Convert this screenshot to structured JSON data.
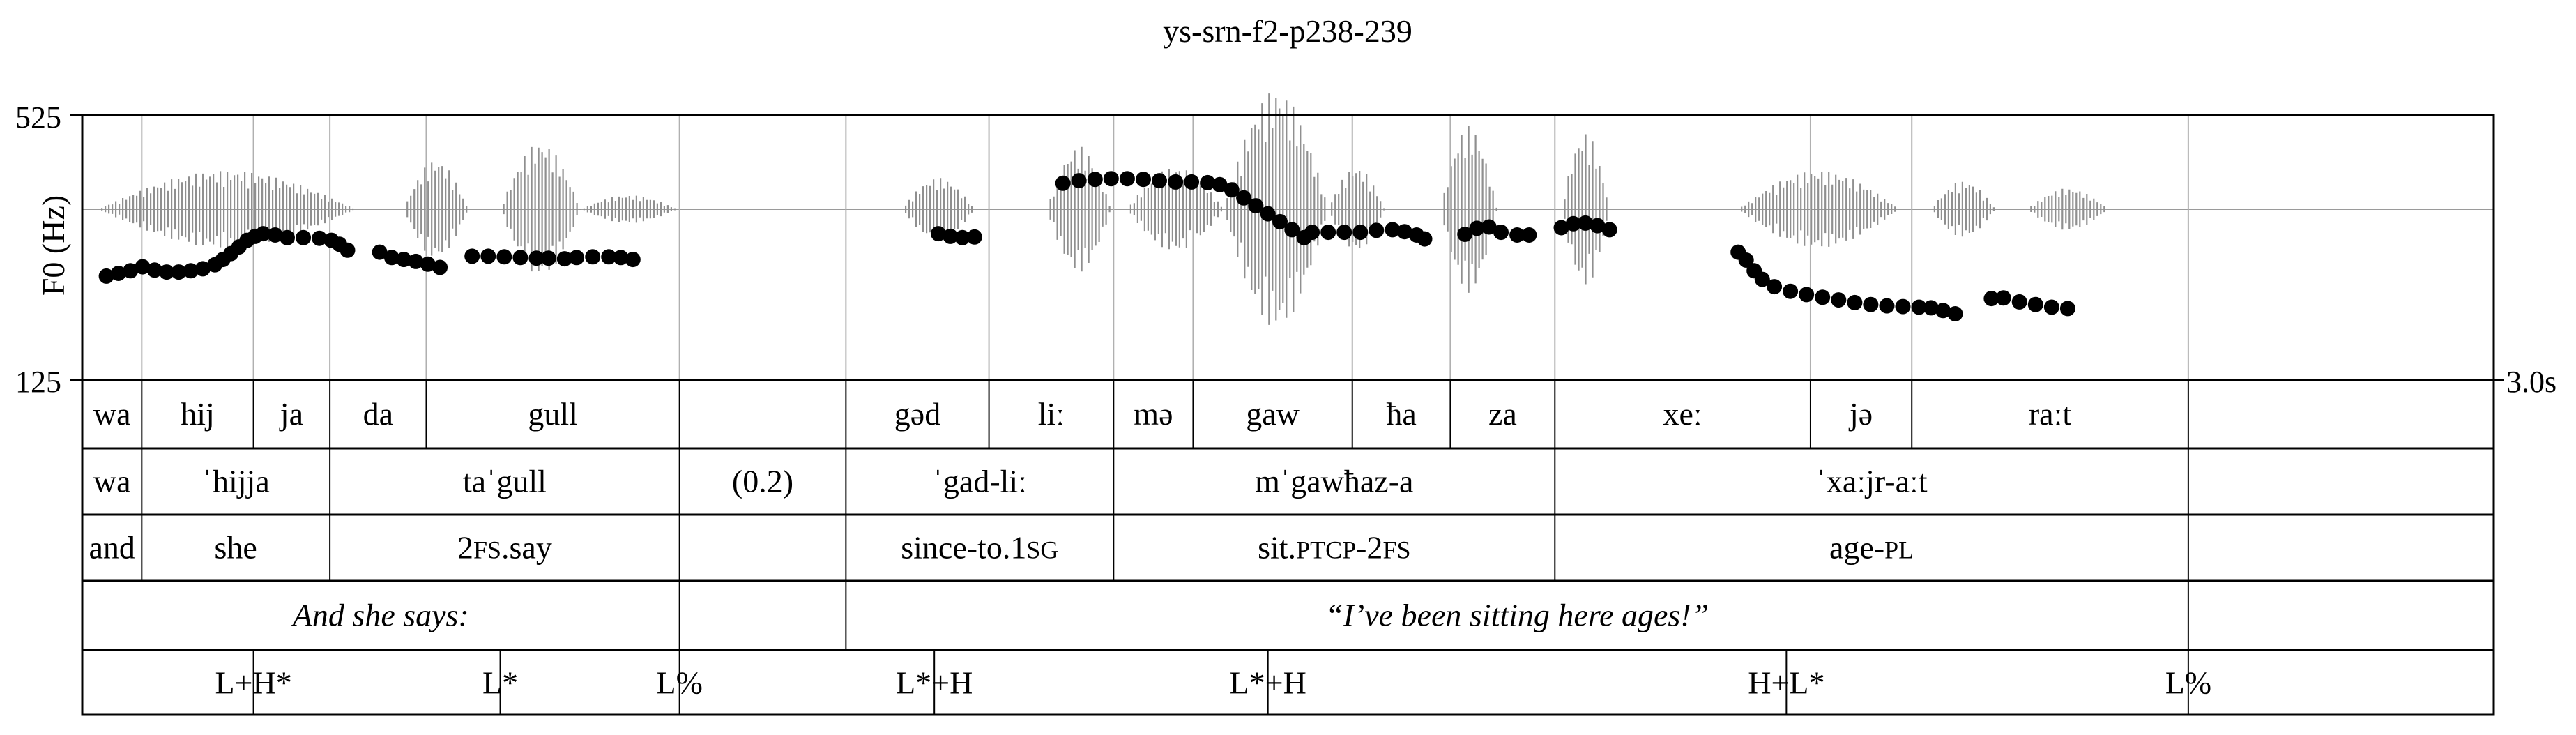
{
  "chart_data": {
    "type": "scatter",
    "title": "ys-srn-f2-p238-239",
    "ylabel": "F0 (Hz)",
    "ylim": [
      125,
      525
    ],
    "xlim": [
      0,
      3.0
    ],
    "x_end_label": "3.0s",
    "y_tick_labels": [
      "525",
      "125"
    ],
    "series": [
      {
        "values": [
          [
            0.03,
            282
          ],
          [
            0.045,
            286
          ],
          [
            0.06,
            290
          ],
          [
            0.075,
            296
          ],
          [
            0.09,
            291
          ],
          [
            0.105,
            288
          ],
          [
            0.12,
            288
          ],
          [
            0.135,
            290
          ],
          [
            0.15,
            293
          ],
          [
            0.165,
            299
          ],
          [
            0.175,
            307
          ],
          [
            0.185,
            316
          ],
          [
            0.195,
            326
          ],
          [
            0.205,
            336
          ],
          [
            0.215,
            342
          ],
          [
            0.225,
            346
          ],
          [
            0.24,
            344
          ],
          [
            0.255,
            340
          ],
          [
            0.275,
            340
          ],
          [
            0.295,
            339
          ],
          [
            0.31,
            336
          ],
          [
            0.32,
            330
          ],
          [
            0.33,
            321
          ],
          [
            0.37,
            318
          ],
          [
            0.385,
            310
          ],
          [
            0.4,
            307
          ],
          [
            0.415,
            304
          ],
          [
            0.43,
            300
          ],
          [
            0.445,
            295
          ],
          [
            0.485,
            312
          ],
          [
            0.505,
            312
          ],
          [
            0.525,
            311
          ],
          [
            0.545,
            310
          ],
          [
            0.565,
            309
          ],
          [
            0.58,
            309
          ],
          [
            0.6,
            308
          ],
          [
            0.615,
            310
          ],
          [
            0.635,
            311
          ],
          [
            0.655,
            311
          ],
          [
            0.67,
            310
          ],
          [
            0.685,
            307
          ],
          [
            1.065,
            346
          ],
          [
            1.08,
            342
          ],
          [
            1.095,
            340
          ],
          [
            1.11,
            341
          ],
          [
            1.22,
            422
          ],
          [
            1.24,
            426
          ],
          [
            1.26,
            428
          ],
          [
            1.28,
            429
          ],
          [
            1.3,
            429
          ],
          [
            1.32,
            428
          ],
          [
            1.34,
            426
          ],
          [
            1.36,
            424
          ],
          [
            1.38,
            424
          ],
          [
            1.4,
            423
          ],
          [
            1.415,
            420
          ],
          [
            1.43,
            412
          ],
          [
            1.445,
            400
          ],
          [
            1.46,
            388
          ],
          [
            1.475,
            376
          ],
          [
            1.49,
            364
          ],
          [
            1.505,
            352
          ],
          [
            1.52,
            340
          ],
          [
            1.53,
            348
          ],
          [
            1.55,
            348
          ],
          [
            1.57,
            348
          ],
          [
            1.59,
            348
          ],
          [
            1.61,
            351
          ],
          [
            1.63,
            352
          ],
          [
            1.645,
            349
          ],
          [
            1.66,
            344
          ],
          [
            1.67,
            338
          ],
          [
            1.72,
            345
          ],
          [
            1.735,
            354
          ],
          [
            1.75,
            356
          ],
          [
            1.765,
            348
          ],
          [
            1.785,
            344
          ],
          [
            1.8,
            344
          ],
          [
            1.84,
            355
          ],
          [
            1.855,
            361
          ],
          [
            1.87,
            362
          ],
          [
            1.885,
            358
          ],
          [
            1.9,
            352
          ],
          [
            2.06,
            318
          ],
          [
            2.07,
            306
          ],
          [
            2.08,
            290
          ],
          [
            2.09,
            277
          ],
          [
            2.105,
            266
          ],
          [
            2.125,
            259
          ],
          [
            2.145,
            254
          ],
          [
            2.165,
            250
          ],
          [
            2.185,
            246
          ],
          [
            2.205,
            242
          ],
          [
            2.225,
            239
          ],
          [
            2.245,
            237
          ],
          [
            2.265,
            236
          ],
          [
            2.285,
            235
          ],
          [
            2.3,
            234
          ],
          [
            2.315,
            230
          ],
          [
            2.33,
            225
          ],
          [
            2.375,
            248
          ],
          [
            2.39,
            249
          ],
          [
            2.41,
            243
          ],
          [
            2.43,
            239
          ],
          [
            2.45,
            235
          ],
          [
            2.47,
            233
          ]
        ]
      }
    ],
    "tiers": [
      {
        "kind": "syllables",
        "cells": [
          {
            "label": "wa",
            "x0": 0.0,
            "x1": 0.074
          },
          {
            "label": "hij",
            "x0": 0.074,
            "x1": 0.213
          },
          {
            "label": "ja",
            "x0": 0.213,
            "x1": 0.308
          },
          {
            "label": "da",
            "x0": 0.308,
            "x1": 0.428
          },
          {
            "label": "gull",
            "x0": 0.428,
            "x1": 0.743
          },
          {
            "label": "",
            "x0": 0.743,
            "x1": 0.95
          },
          {
            "label": "gəd",
            "x0": 0.95,
            "x1": 1.128
          },
          {
            "label": "liː",
            "x0": 1.128,
            "x1": 1.283
          },
          {
            "label": "mə",
            "x0": 1.283,
            "x1": 1.382
          },
          {
            "label": "gaw",
            "x0": 1.382,
            "x1": 1.58
          },
          {
            "label": "ħa",
            "x0": 1.58,
            "x1": 1.702
          },
          {
            "label": "za",
            "x0": 1.702,
            "x1": 1.832
          },
          {
            "label": "xeː",
            "x0": 1.832,
            "x1": 2.15
          },
          {
            "label": "jə",
            "x0": 2.15,
            "x1": 2.276
          },
          {
            "label": "raːt",
            "x0": 2.276,
            "x1": 2.62
          },
          {
            "label": "",
            "x0": 2.62,
            "x1": 3.0
          }
        ]
      },
      {
        "kind": "words",
        "cells": [
          {
            "label": "wa",
            "x0": 0.0,
            "x1": 0.074
          },
          {
            "label": "ˈhijja",
            "x0": 0.074,
            "x1": 0.308
          },
          {
            "label": "taˈgull",
            "x0": 0.308,
            "x1": 0.743
          },
          {
            "label": "(0.2)",
            "x0": 0.743,
            "x1": 0.95
          },
          {
            "label": "ˈgad-liː",
            "x0": 0.95,
            "x1": 1.283
          },
          {
            "label": "mˈgawħaz-a",
            "x0": 1.283,
            "x1": 1.832
          },
          {
            "label": "ˈxaːjr-aːt",
            "x0": 1.832,
            "x1": 2.62
          },
          {
            "label": "",
            "x0": 2.62,
            "x1": 3.0
          }
        ]
      },
      {
        "kind": "gloss",
        "cells": [
          {
            "label": "and",
            "x0": 0.0,
            "x1": 0.074
          },
          {
            "label": "she",
            "x0": 0.074,
            "x1": 0.308
          },
          {
            "label": "2FS.say",
            "x0": 0.308,
            "x1": 0.743
          },
          {
            "label": "",
            "x0": 0.743,
            "x1": 0.95
          },
          {
            "label": "since-to.1SG",
            "x0": 0.95,
            "x1": 1.283
          },
          {
            "label": "sit.PTCP-2FS",
            "x0": 1.283,
            "x1": 1.832
          },
          {
            "label": "age-PL",
            "x0": 1.832,
            "x1": 2.62
          },
          {
            "label": "",
            "x0": 2.62,
            "x1": 3.0
          }
        ]
      },
      {
        "kind": "translation",
        "cells": [
          {
            "label": "And she says:",
            "x0": 0.0,
            "x1": 0.743
          },
          {
            "label": "",
            "x0": 0.743,
            "x1": 0.95
          },
          {
            "label": "“I’ve been sitting here ages!”",
            "x0": 0.95,
            "x1": 2.62
          },
          {
            "label": "",
            "x0": 2.62,
            "x1": 3.0
          }
        ]
      }
    ],
    "tones": [
      {
        "label": "L+H*",
        "x": 0.213
      },
      {
        "label": "L*",
        "x": 0.52
      },
      {
        "label": "L%",
        "x": 0.743
      },
      {
        "label": "L*+H",
        "x": 1.06
      },
      {
        "label": "L*+H",
        "x": 1.475
      },
      {
        "label": "H+L*",
        "x": 2.12
      },
      {
        "label": "L%",
        "x": 2.62
      }
    ]
  }
}
